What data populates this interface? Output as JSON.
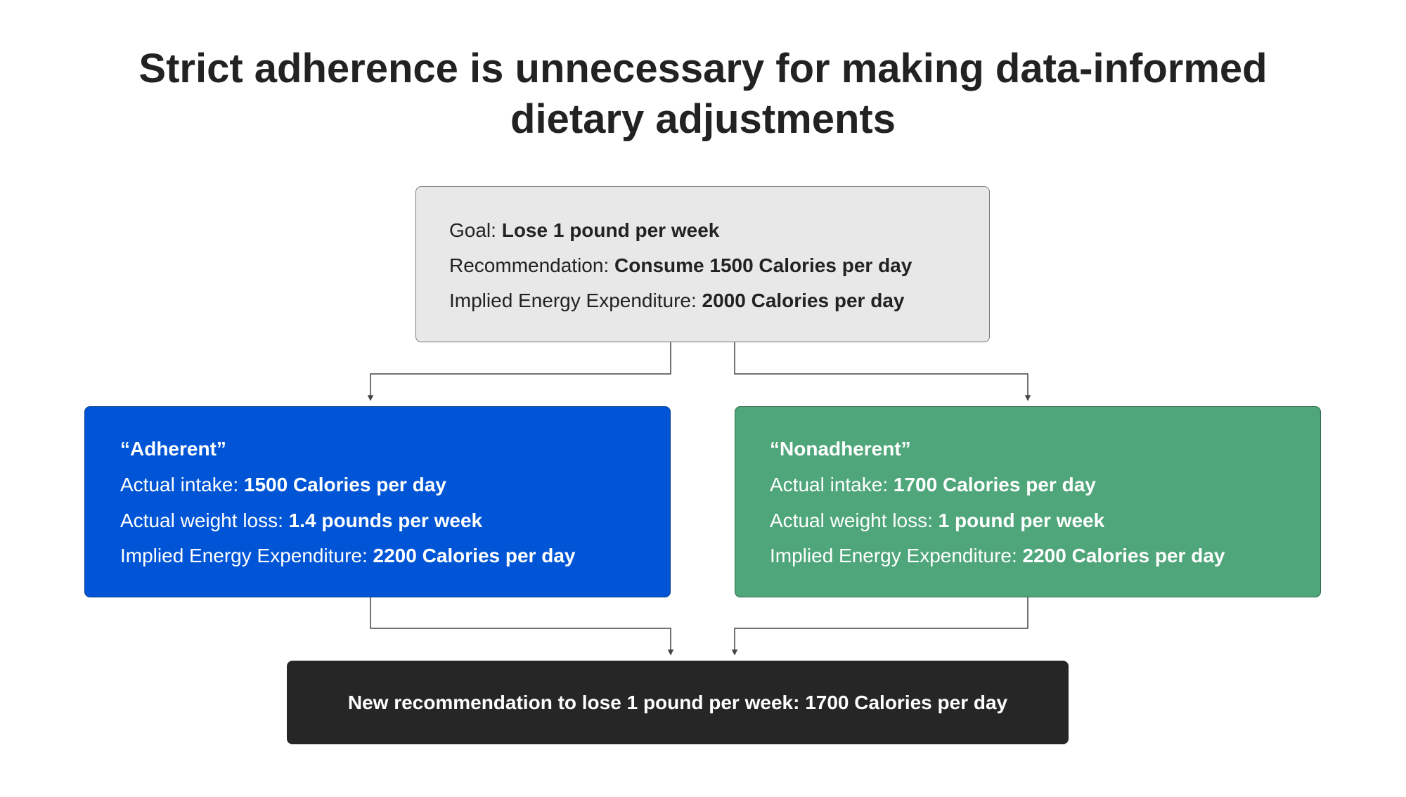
{
  "title": "Strict adherence is unnecessary for making data-informed dietary adjustments",
  "nodes": [
    {
      "lines": [
        {
          "label": "Goal:",
          "value": "Lose 1 pound per week"
        },
        {
          "label": "Recommendation:",
          "value": "Consume 1500 Calories per day"
        },
        {
          "label": "Implied Energy Expenditure:",
          "value": "2000 Calories per day"
        }
      ]
    },
    {
      "heading": "“Adherent”",
      "lines": [
        {
          "label": "Actual intake:",
          "value": "1500 Calories per day"
        },
        {
          "label": "Actual weight loss:",
          "value": "1.4 pounds per week"
        },
        {
          "label": "Implied Energy Expenditure:",
          "value": "2200 Calories per day"
        }
      ]
    },
    {
      "heading": "“Nonadherent”",
      "lines": [
        {
          "label": "Actual intake:",
          "value": "1700 Calories per day"
        },
        {
          "label": "Actual weight loss:",
          "value": "1 pound per week"
        },
        {
          "label": "Implied Energy Expenditure:",
          "value": "2200 Calories per day"
        }
      ]
    },
    {
      "text": "New recommendation to lose 1 pound per week: 1700 Calories per day"
    }
  ]
}
